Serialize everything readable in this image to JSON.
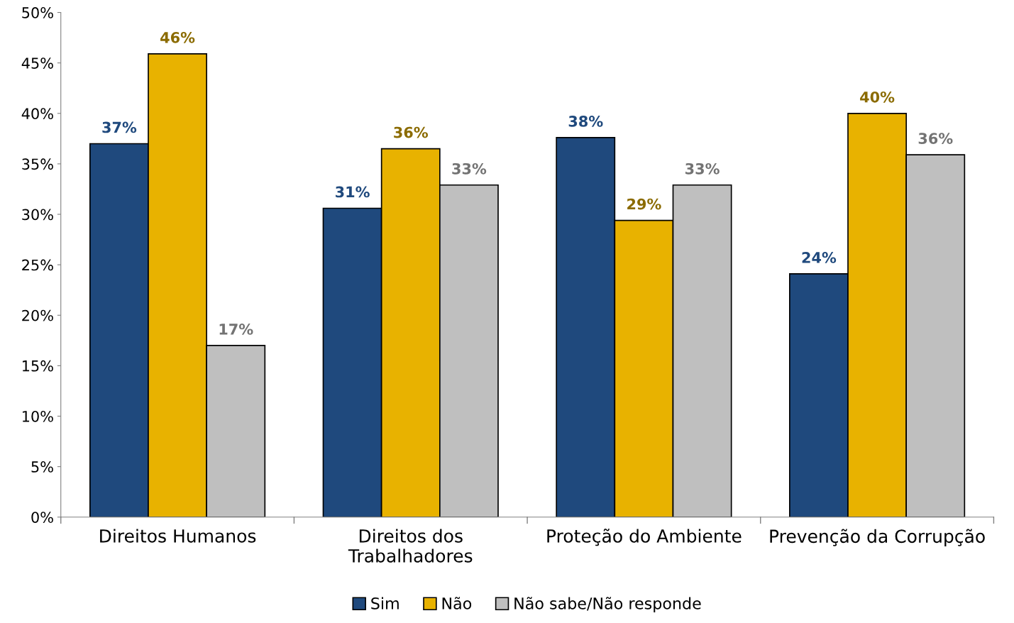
{
  "chart_data": {
    "type": "bar",
    "categories": [
      "Direitos Humanos",
      "Direitos dos\nTrabalhadores",
      "Proteção do Ambiente",
      "Prevenção da Corrupção"
    ],
    "series": [
      {
        "name": "Sim",
        "color": "#1f497d",
        "values": [
          37.0,
          30.6,
          37.6,
          24.1
        ],
        "value_labels": [
          "37%",
          "31%",
          "38%",
          "24%"
        ]
      },
      {
        "name": "Não",
        "color": "#e8b200",
        "values": [
          45.9,
          36.5,
          29.4,
          40.0
        ],
        "value_labels": [
          "46%",
          "36%",
          "29%",
          "40%"
        ]
      },
      {
        "name": "Não sabe/Não responde",
        "color": "#bfbfbf",
        "values": [
          17.0,
          32.9,
          32.9,
          35.9
        ],
        "value_labels": [
          "17%",
          "33%",
          "33%",
          "36%"
        ]
      }
    ],
    "ylim": [
      0,
      50
    ],
    "yticks": [
      {
        "value": 0,
        "label": "0%"
      },
      {
        "value": 5,
        "label": "5%"
      },
      {
        "value": 10,
        "label": "10%"
      },
      {
        "value": 15,
        "label": "15%"
      },
      {
        "value": 20,
        "label": "20%"
      },
      {
        "value": 25,
        "label": "25%"
      },
      {
        "value": 30,
        "label": "30%"
      },
      {
        "value": 35,
        "label": "35%"
      },
      {
        "value": 40,
        "label": "40%"
      },
      {
        "value": 45,
        "label": "45%"
      },
      {
        "value": 50,
        "label": "50%"
      }
    ],
    "grid": false,
    "legend": "bottom"
  }
}
